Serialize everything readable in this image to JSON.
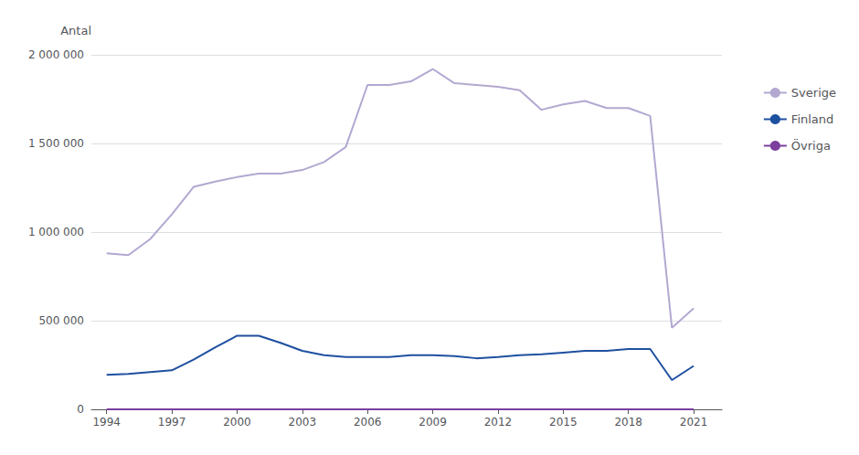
{
  "chart_data": {
    "type": "line",
    "y_label": "Antal",
    "x": [
      1994,
      1995,
      1996,
      1997,
      1998,
      1999,
      2000,
      2001,
      2002,
      2003,
      2004,
      2005,
      2006,
      2007,
      2008,
      2009,
      2010,
      2011,
      2012,
      2013,
      2014,
      2015,
      2016,
      2017,
      2018,
      2019,
      2020,
      2021
    ],
    "series": [
      {
        "name": "Sverige",
        "color": "#b3a8d1",
        "values": [
          880000,
          870000,
          960000,
          1100000,
          1255000,
          1285000,
          1310000,
          1330000,
          1330000,
          1350000,
          1395000,
          1480000,
          1830000,
          1830000,
          1850000,
          1920000,
          1840000,
          1830000,
          1820000,
          1800000,
          1690000,
          1720000,
          1740000,
          1700000,
          1700000,
          1655000,
          460000,
          570000
        ]
      },
      {
        "name": "Finland",
        "color": "#1e50a0",
        "values": [
          195000,
          200000,
          210000,
          220000,
          280000,
          350000,
          415000,
          415000,
          375000,
          330000,
          305000,
          295000,
          295000,
          295000,
          305000,
          305000,
          300000,
          288000,
          295000,
          305000,
          310000,
          320000,
          330000,
          330000,
          340000,
          340000,
          165000,
          245000
        ]
      },
      {
        "name": "Övriga",
        "color": "#7b3f9e",
        "values": [
          0,
          0,
          0,
          0,
          0,
          0,
          0,
          0,
          0,
          0,
          0,
          0,
          0,
          0,
          0,
          0,
          0,
          0,
          0,
          0,
          0,
          0,
          0,
          0,
          0,
          0,
          0,
          0
        ]
      }
    ],
    "xlim": [
      1993.3,
      2022.3
    ],
    "xticks": [
      1994,
      1997,
      2000,
      2003,
      2006,
      2009,
      2012,
      2015,
      2018,
      2021
    ],
    "ylim": [
      0,
      2000000
    ],
    "yticks": [
      0,
      {
        "value": 500000,
        "label": "500 000"
      },
      {
        "value": 1000000,
        "label": "1 000 000"
      },
      {
        "value": 1500000,
        "label": "1 500 000"
      },
      {
        "value": 2000000,
        "label": "2 000 000"
      }
    ],
    "grid": true,
    "legend": "right"
  }
}
